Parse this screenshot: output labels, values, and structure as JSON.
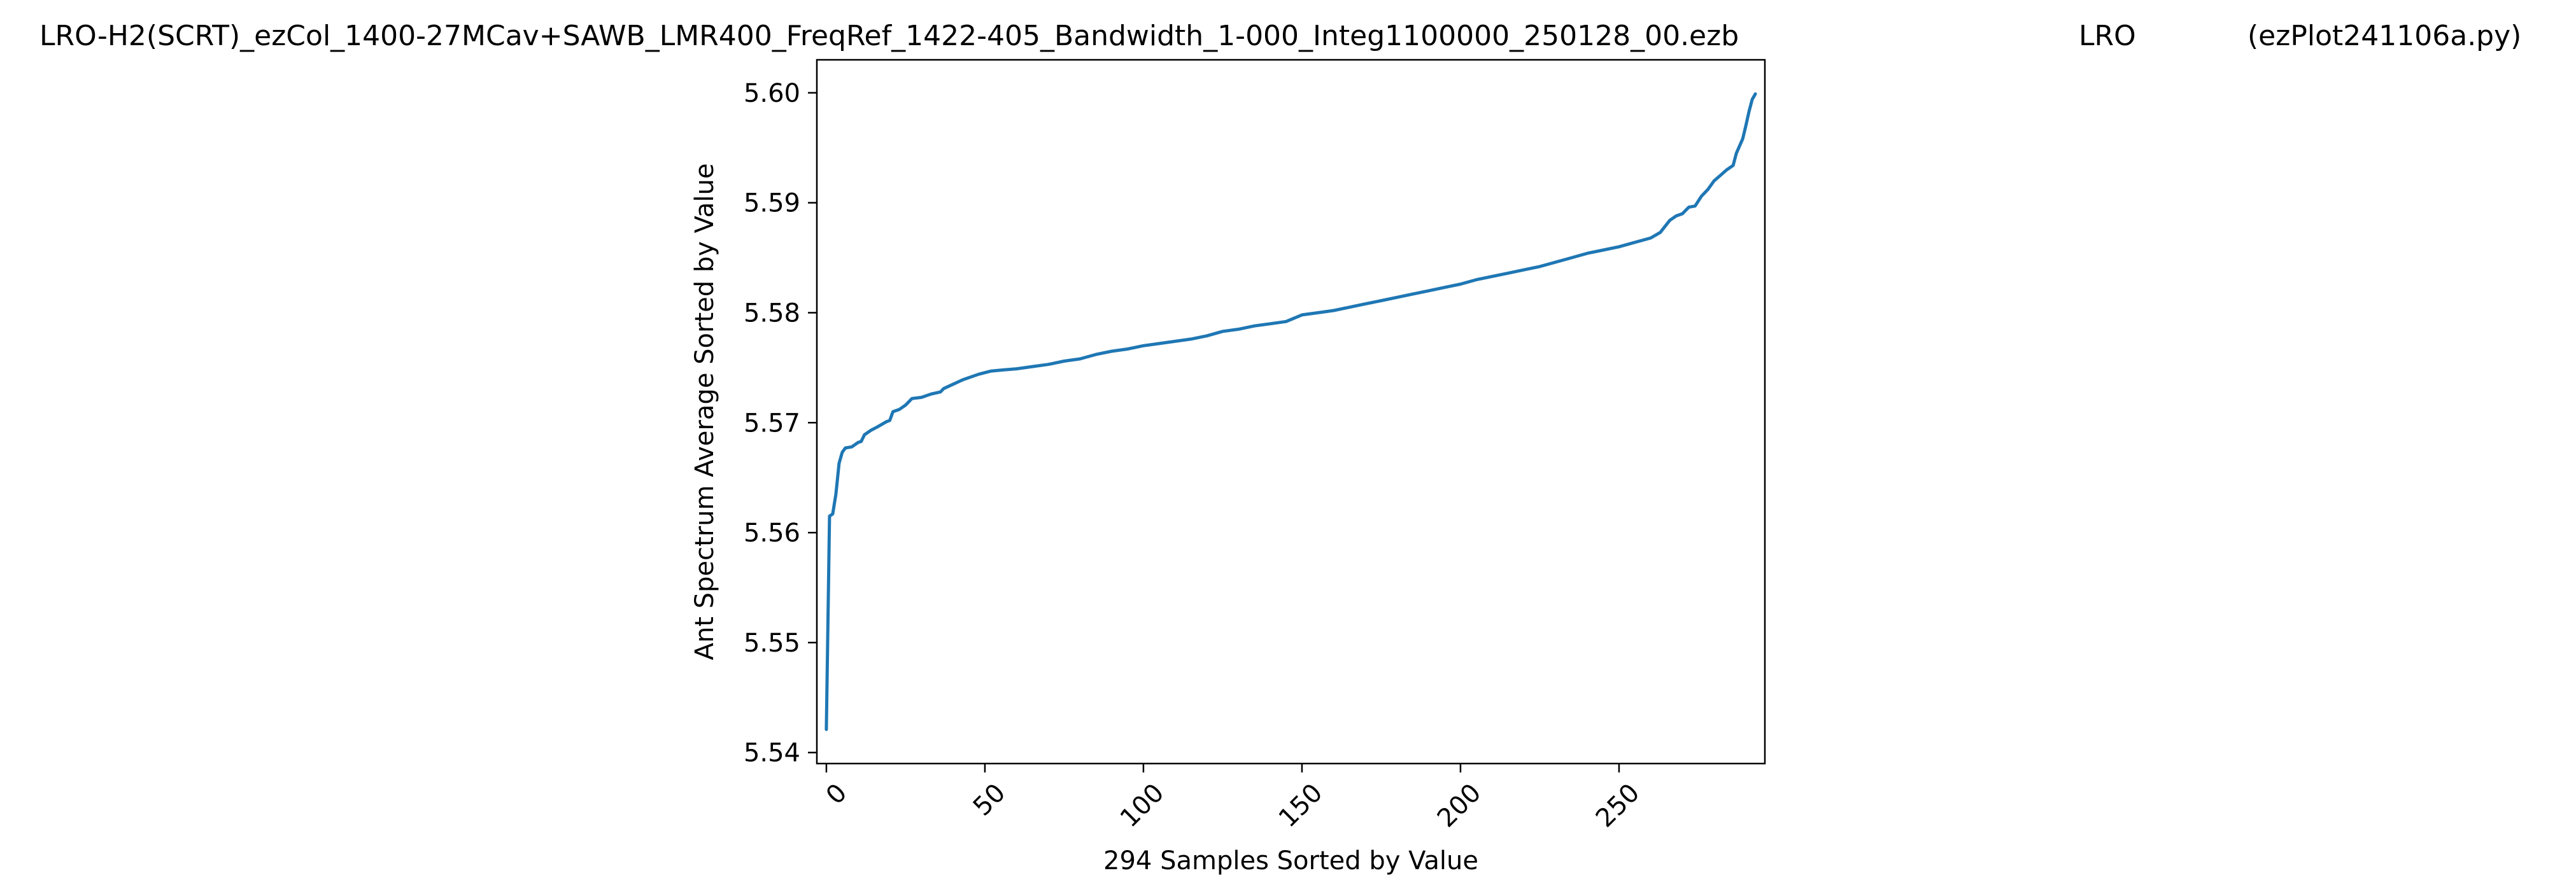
{
  "figure": {
    "title_file": "LRO-H2(SCRT)_ezCol_1400-27MCav+SAWB_LMR400_FreqRef_1422-405_Bandwidth_1-000_Integ1100000_250128_00.ezb",
    "title_station": "LRO",
    "title_script": "(ezPlot241106a.py)"
  },
  "chart_data": {
    "type": "line",
    "xlabel": "294 Samples Sorted by Value",
    "ylabel": "Ant Spectrum Average Sorted by Value",
    "xlim": [
      -3,
      296
    ],
    "ylim": [
      5.539,
      5.603
    ],
    "x_ticks": [
      0,
      50,
      100,
      150,
      200,
      250
    ],
    "x_tick_labels": [
      "0",
      "50",
      "100",
      "150",
      "200",
      "250"
    ],
    "y_ticks": [
      5.54,
      5.55,
      5.56,
      5.57,
      5.58,
      5.59,
      5.6
    ],
    "y_tick_labels": [
      "5.54",
      "5.55",
      "5.56",
      "5.57",
      "5.58",
      "5.59",
      "5.60"
    ],
    "grid": false,
    "line_color": "#1f77b4",
    "series": [
      {
        "points": [
          [
            0,
            5.5421
          ],
          [
            1,
            5.5615
          ],
          [
            2,
            5.5617
          ],
          [
            3,
            5.5635
          ],
          [
            4,
            5.5663
          ],
          [
            5,
            5.5673
          ],
          [
            6,
            5.5677
          ],
          [
            8,
            5.5678
          ],
          [
            10,
            5.5682
          ],
          [
            11,
            5.5683
          ],
          [
            12,
            5.5689
          ],
          [
            14,
            5.5693
          ],
          [
            16,
            5.5696
          ],
          [
            19,
            5.5701
          ],
          [
            20,
            5.5702
          ],
          [
            21,
            5.571
          ],
          [
            23,
            5.5712
          ],
          [
            25,
            5.5716
          ],
          [
            27,
            5.5722
          ],
          [
            30,
            5.5723
          ],
          [
            33,
            5.5726
          ],
          [
            36,
            5.5728
          ],
          [
            37,
            5.5731
          ],
          [
            40,
            5.5735
          ],
          [
            43,
            5.5739
          ],
          [
            46,
            5.5742
          ],
          [
            48,
            5.5744
          ],
          [
            52,
            5.5747
          ],
          [
            56,
            5.5748
          ],
          [
            60,
            5.5749
          ],
          [
            65,
            5.5751
          ],
          [
            70,
            5.5753
          ],
          [
            75,
            5.5756
          ],
          [
            80,
            5.5758
          ],
          [
            85,
            5.5762
          ],
          [
            90,
            5.5765
          ],
          [
            95,
            5.5767
          ],
          [
            100,
            5.577
          ],
          [
            105,
            5.5772
          ],
          [
            110,
            5.5774
          ],
          [
            115,
            5.5776
          ],
          [
            120,
            5.5779
          ],
          [
            125,
            5.5783
          ],
          [
            130,
            5.5785
          ],
          [
            135,
            5.5788
          ],
          [
            140,
            5.579
          ],
          [
            145,
            5.5792
          ],
          [
            150,
            5.5798
          ],
          [
            155,
            5.58
          ],
          [
            160,
            5.5802
          ],
          [
            165,
            5.5805
          ],
          [
            170,
            5.5808
          ],
          [
            175,
            5.5811
          ],
          [
            180,
            5.5814
          ],
          [
            185,
            5.5817
          ],
          [
            190,
            5.582
          ],
          [
            195,
            5.5823
          ],
          [
            200,
            5.5826
          ],
          [
            205,
            5.583
          ],
          [
            210,
            5.5833
          ],
          [
            215,
            5.5836
          ],
          [
            220,
            5.5839
          ],
          [
            225,
            5.5842
          ],
          [
            230,
            5.5846
          ],
          [
            235,
            5.585
          ],
          [
            240,
            5.5854
          ],
          [
            245,
            5.5857
          ],
          [
            250,
            5.586
          ],
          [
            255,
            5.5864
          ],
          [
            260,
            5.5868
          ],
          [
            263,
            5.5873
          ],
          [
            266,
            5.5884
          ],
          [
            268,
            5.5888
          ],
          [
            270,
            5.589
          ],
          [
            272,
            5.5896
          ],
          [
            274,
            5.5897
          ],
          [
            276,
            5.5906
          ],
          [
            278,
            5.5912
          ],
          [
            280,
            5.592
          ],
          [
            282,
            5.5925
          ],
          [
            284,
            5.593
          ],
          [
            286,
            5.5934
          ],
          [
            287,
            5.5945
          ],
          [
            289,
            5.5958
          ],
          [
            290,
            5.597
          ],
          [
            291,
            5.5983
          ],
          [
            292,
            5.5994
          ],
          [
            293,
            5.5999
          ]
        ]
      }
    ]
  }
}
